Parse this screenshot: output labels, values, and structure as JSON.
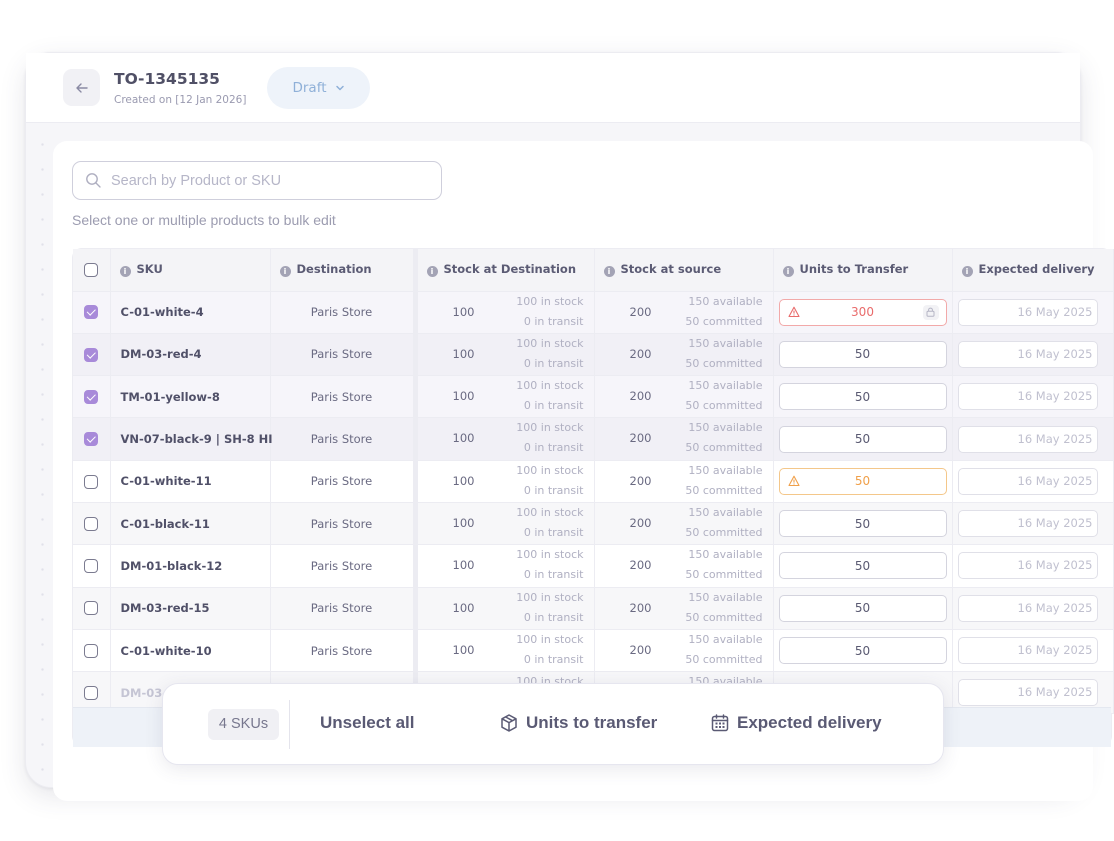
{
  "header": {
    "back_icon": "arrow-left-icon",
    "order_id": "TO-1345135",
    "created_on": "Created on [12 Jan 2026]",
    "status": "Draft"
  },
  "search": {
    "placeholder": "Search by Product or SKU"
  },
  "hint": "Select one or multiple products to bulk edit",
  "table": {
    "columns": {
      "sku": "SKU",
      "destination": "Destination",
      "stock_destination": "Stock at Destination",
      "stock_source": "Stock at source",
      "units": "Units to Transfer",
      "delivery": "Expected delivery"
    },
    "rows": [
      {
        "checked": true,
        "sku": "C-01-white-4",
        "destination": "Paris Store",
        "dest_stock": "100",
        "dest_in_stock": "100 in stock",
        "dest_in_transit": "0 in transit",
        "src_stock": "200",
        "src_available": "150 available",
        "src_committed": "50 committed",
        "units": "300",
        "units_state": "error",
        "delivery": "16 May 2025"
      },
      {
        "checked": true,
        "sku": "DM-03-red-4",
        "destination": "Paris Store",
        "dest_stock": "100",
        "dest_in_stock": "100 in stock",
        "dest_in_transit": "0 in transit",
        "src_stock": "200",
        "src_available": "150 available",
        "src_committed": "50 committed",
        "units": "50",
        "units_state": "normal",
        "delivery": "16 May 2025"
      },
      {
        "checked": true,
        "sku": "TM-01-yellow-8",
        "destination": "Paris Store",
        "dest_stock": "100",
        "dest_in_stock": "100 in stock",
        "dest_in_transit": "0 in transit",
        "src_stock": "200",
        "src_available": "150 available",
        "src_committed": "50 committed",
        "units": "50",
        "units_state": "normal",
        "delivery": "16 May 2025"
      },
      {
        "checked": true,
        "sku": "VN-07-black-9 | SH-8 HI",
        "destination": "Paris Store",
        "dest_stock": "100",
        "dest_in_stock": "100 in stock",
        "dest_in_transit": "0 in transit",
        "src_stock": "200",
        "src_available": "150 available",
        "src_committed": "50 committed",
        "units": "50",
        "units_state": "normal",
        "delivery": "16 May 2025"
      },
      {
        "checked": false,
        "sku": "C-01-white-11",
        "destination": "Paris Store",
        "dest_stock": "100",
        "dest_in_stock": "100 in stock",
        "dest_in_transit": "0 in transit",
        "src_stock": "200",
        "src_available": "150 available",
        "src_committed": "50 committed",
        "units": "50",
        "units_state": "warning",
        "delivery": "16 May 2025"
      },
      {
        "checked": false,
        "sku": "C-01-black-11",
        "destination": "Paris Store",
        "dest_stock": "100",
        "dest_in_stock": "100 in stock",
        "dest_in_transit": "0 in transit",
        "src_stock": "200",
        "src_available": "150 available",
        "src_committed": "50 committed",
        "units": "50",
        "units_state": "normal",
        "delivery": "16 May 2025"
      },
      {
        "checked": false,
        "sku": "DM-01-black-12",
        "destination": "Paris Store",
        "dest_stock": "100",
        "dest_in_stock": "100 in stock",
        "dest_in_transit": "0 in transit",
        "src_stock": "200",
        "src_available": "150 available",
        "src_committed": "50 committed",
        "units": "50",
        "units_state": "normal",
        "delivery": "16 May 2025"
      },
      {
        "checked": false,
        "sku": "DM-03-red-15",
        "destination": "Paris Store",
        "dest_stock": "100",
        "dest_in_stock": "100 in stock",
        "dest_in_transit": "0 in transit",
        "src_stock": "200",
        "src_available": "150 available",
        "src_committed": "50 committed",
        "units": "50",
        "units_state": "normal",
        "delivery": "16 May 2025"
      },
      {
        "checked": false,
        "sku": "C-01-white-10",
        "destination": "Paris Store",
        "dest_stock": "100",
        "dest_in_stock": "100 in stock",
        "dest_in_transit": "0 in transit",
        "src_stock": "200",
        "src_available": "150 available",
        "src_committed": "50 committed",
        "units": "50",
        "units_state": "normal",
        "delivery": "16 May 2025"
      },
      {
        "checked": false,
        "sku": "DM-03-",
        "destination": "",
        "dest_stock": "",
        "dest_in_stock": "100 in stock",
        "dest_in_transit": "",
        "src_stock": "",
        "src_available": "150 available",
        "src_committed": "",
        "units": "",
        "units_state": "normal",
        "delivery": "16 May 2025"
      }
    ]
  },
  "action_bar": {
    "selected_count": "4 SKUs",
    "unselect_label": "Unselect all",
    "units_label": "Units to transfer",
    "units_icon": "box-icon",
    "delivery_label": "Expected delivery",
    "delivery_icon": "calendar-icon"
  },
  "colors": {
    "accent_checkbox": "#a88ad9",
    "error": "#e96b6b",
    "warning": "#f0a04a",
    "status_pill_bg": "#eef3fa",
    "status_pill_text": "#8fb0d8"
  }
}
